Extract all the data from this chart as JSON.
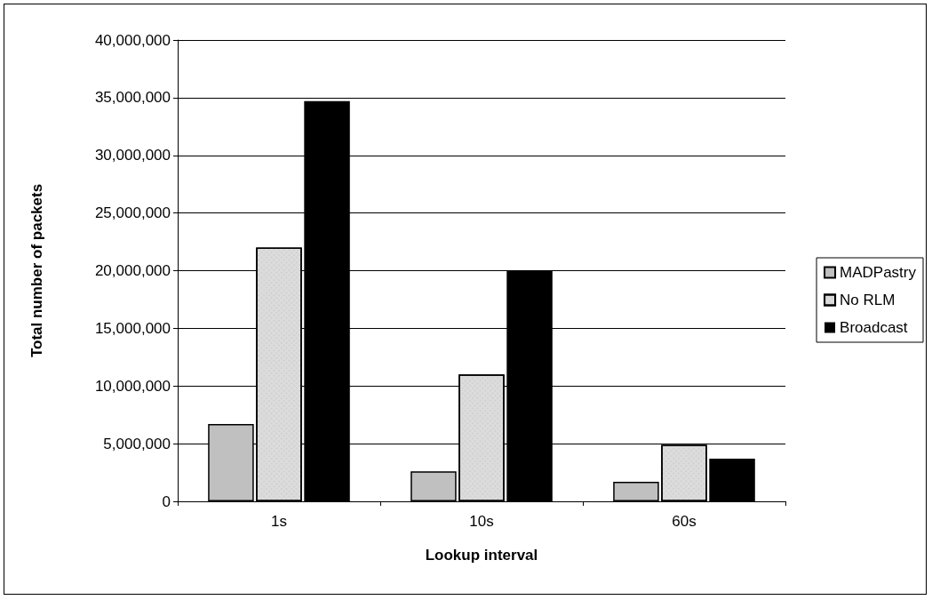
{
  "chart_data": {
    "type": "bar",
    "xlabel": "Lookup interval",
    "ylabel": "Total number of packets",
    "categories": [
      "1s",
      "10s",
      "60s"
    ],
    "series": [
      {
        "name": "MADPastry",
        "color": "#c0c0c0",
        "values": [
          6700000,
          2600000,
          1700000
        ]
      },
      {
        "name": "No RLM",
        "color": "#dcdcdc",
        "values": [
          22000000,
          11000000,
          4900000
        ]
      },
      {
        "name": "Broadcast",
        "color": "#000000",
        "values": [
          34700000,
          20000000,
          3700000
        ]
      }
    ],
    "ylim": [
      0,
      40000000
    ],
    "yticks": [
      0,
      {
        "value": 5000000,
        "label": "5,000,000"
      },
      {
        "value": 10000000,
        "label": "10,000,000"
      },
      {
        "value": 15000000,
        "label": "15,000,000"
      },
      {
        "value": 20000000,
        "label": "20,000,000"
      },
      {
        "value": 25000000,
        "label": "25,000,000"
      },
      {
        "value": 30000000,
        "label": "30,000,000"
      },
      {
        "value": 35000000,
        "label": "35,000,000"
      },
      {
        "value": 40000000,
        "label": "40,000,000"
      }
    ],
    "grid": "y",
    "legend": "right"
  }
}
